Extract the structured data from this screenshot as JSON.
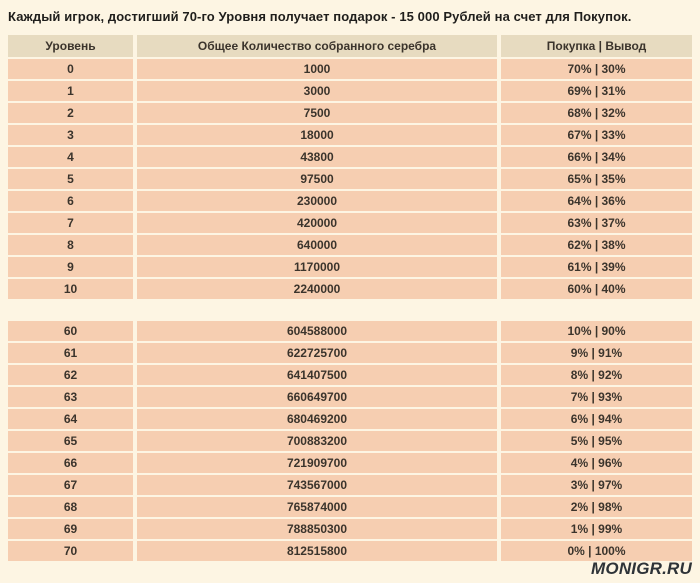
{
  "page": {
    "title": "Каждый игрок, достигший 70-го Уровня получает подарок - 15 000 Рублей на счет для Покупок.",
    "watermark": "MONIGR.RU"
  },
  "colors": {
    "page_bg": "#fdf5e3",
    "header_bg": "#e7dbc0",
    "row_bg": "#f6ceb1",
    "text": "#3b342c"
  },
  "table": {
    "headers": [
      "Уровень",
      "Общее Количество собранного серебра",
      "Покупка | Вывод"
    ],
    "top_rows": [
      [
        "0",
        "1000",
        "70% | 30%"
      ],
      [
        "1",
        "3000",
        "69% | 31%"
      ],
      [
        "2",
        "7500",
        "68% | 32%"
      ],
      [
        "3",
        "18000",
        "67% | 33%"
      ],
      [
        "4",
        "43800",
        "66% | 34%"
      ],
      [
        "5",
        "97500",
        "65% | 35%"
      ],
      [
        "6",
        "230000",
        "64% | 36%"
      ],
      [
        "7",
        "420000",
        "63% | 37%"
      ],
      [
        "8",
        "640000",
        "62% | 38%"
      ],
      [
        "9",
        "1170000",
        "61% | 39%"
      ],
      [
        "10",
        "2240000",
        "60% | 40%"
      ]
    ],
    "bottom_rows": [
      [
        "60",
        "604588000",
        "10% | 90%"
      ],
      [
        "61",
        "622725700",
        "9% | 91%"
      ],
      [
        "62",
        "641407500",
        "8% | 92%"
      ],
      [
        "63",
        "660649700",
        "7% | 93%"
      ],
      [
        "64",
        "680469200",
        "6% | 94%"
      ],
      [
        "65",
        "700883200",
        "5% | 95%"
      ],
      [
        "66",
        "721909700",
        "4% | 96%"
      ],
      [
        "67",
        "743567000",
        "3% | 97%"
      ],
      [
        "68",
        "765874000",
        "2% | 98%"
      ],
      [
        "69",
        "788850300",
        "1% | 99%"
      ],
      [
        "70",
        "812515800",
        "0% | 100%"
      ]
    ]
  }
}
